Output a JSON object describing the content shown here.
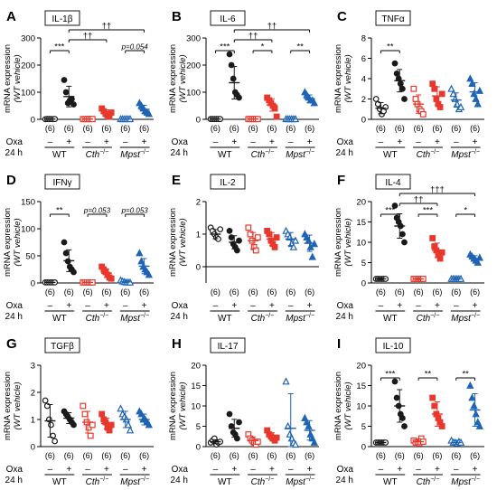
{
  "figure": {
    "ylabel_line1": "mRNA expression",
    "ylabel_line2": "(WT vehicle)",
    "treatment_label": "Oxa",
    "time_label": "24 h",
    "minus": "–",
    "plus": "+",
    "groups": [
      "WT",
      "Cth",
      "Mpst"
    ],
    "group_superscript": "−/−",
    "n_label": "(6)"
  },
  "colors": {
    "wt": "#1a1a1a",
    "cth": "#e8382d",
    "mpst": "#1f64b4"
  },
  "chart_data": [
    {
      "panel": "A",
      "title": "IL-1β",
      "type": "scatter",
      "ylim": [
        0,
        300
      ],
      "yticks": [
        0,
        100,
        200,
        300
      ],
      "groups": [
        {
          "name": "WT vehicle",
          "values": [
            0.5,
            1,
            1,
            1.2,
            0.8,
            1
          ],
          "mean": 1,
          "sd": 0.2
        },
        {
          "name": "WT Oxa",
          "values": [
            145,
            100,
            60,
            70,
            75,
            55
          ],
          "mean": 84,
          "sd": 38
        },
        {
          "name": "Cth vehicle",
          "values": [
            1,
            1,
            0.8,
            1.2,
            1,
            1
          ],
          "mean": 1,
          "sd": 0.2
        },
        {
          "name": "Cth Oxa",
          "values": [
            40,
            30,
            20,
            15,
            10,
            25
          ],
          "mean": 23,
          "sd": 12
        },
        {
          "name": "Mpst vehicle",
          "values": [
            1,
            1,
            0.8,
            1.2,
            1,
            1
          ],
          "mean": 1,
          "sd": 0.2
        },
        {
          "name": "Mpst Oxa",
          "values": [
            60,
            50,
            40,
            30,
            25,
            20
          ],
          "mean": 37,
          "sd": 15
        }
      ],
      "annotations": [
        {
          "text": "***",
          "from": 0,
          "to": 1,
          "level": 0
        },
        {
          "text": "p=0.054",
          "from": 4,
          "to": 5,
          "level": 0
        },
        {
          "text": "††",
          "from": 1,
          "to": 3,
          "level": 1
        },
        {
          "text": "††",
          "from": 1,
          "to": 5,
          "level": 2
        }
      ]
    },
    {
      "panel": "B",
      "title": "IL-6",
      "type": "scatter",
      "ylim": [
        0,
        300
      ],
      "yticks": [
        0,
        100,
        200,
        300
      ],
      "groups": [
        {
          "name": "WT vehicle",
          "values": [
            1,
            1,
            1,
            1,
            1,
            1
          ],
          "mean": 1,
          "sd": 0.1
        },
        {
          "name": "WT Oxa",
          "values": [
            240,
            200,
            150,
            100,
            90,
            80
          ],
          "mean": 135,
          "sd": 60
        },
        {
          "name": "Cth vehicle",
          "values": [
            1,
            1,
            1,
            1,
            1,
            1
          ],
          "mean": 1,
          "sd": 0.1
        },
        {
          "name": "Cth Oxa",
          "values": [
            80,
            70,
            60,
            50,
            40,
            10
          ],
          "mean": 53,
          "sd": 23
        },
        {
          "name": "Mpst vehicle",
          "values": [
            1,
            1,
            1,
            1,
            1,
            1
          ],
          "mean": 1,
          "sd": 0.1
        },
        {
          "name": "Mpst Oxa",
          "values": [
            100,
            90,
            80,
            70,
            70,
            60
          ],
          "mean": 76,
          "sd": 14
        }
      ],
      "annotations": [
        {
          "text": "***",
          "from": 0,
          "to": 1,
          "level": 0
        },
        {
          "text": "*",
          "from": 2,
          "to": 3,
          "level": 0
        },
        {
          "text": "**",
          "from": 4,
          "to": 5,
          "level": 0
        },
        {
          "text": "††",
          "from": 1,
          "to": 3,
          "level": 1
        },
        {
          "text": "††",
          "from": 1,
          "to": 5,
          "level": 2
        }
      ]
    },
    {
      "panel": "C",
      "title": "TNFα",
      "type": "scatter",
      "ylim": [
        0,
        8
      ],
      "yticks": [
        0,
        2,
        4,
        6,
        8
      ],
      "groups": [
        {
          "name": "WT vehicle",
          "values": [
            2,
            1.5,
            1,
            0.5,
            0.8,
            1.2
          ],
          "mean": 1.1,
          "sd": 0.55
        },
        {
          "name": "WT Oxa",
          "values": [
            5.5,
            4.5,
            4,
            3.5,
            3,
            2
          ],
          "mean": 3.8,
          "sd": 1.1
        },
        {
          "name": "Cth vehicle",
          "values": [
            3,
            2,
            1.5,
            1,
            0.8,
            0.5
          ],
          "mean": 1.5,
          "sd": 0.9
        },
        {
          "name": "Cth Oxa",
          "values": [
            3.5,
            3,
            2,
            1.5,
            1.2,
            2.5
          ],
          "mean": 2.3,
          "sd": 0.9
        },
        {
          "name": "Mpst vehicle",
          "values": [
            3,
            2.5,
            2,
            1.5,
            1,
            1.2
          ],
          "mean": 1.9,
          "sd": 0.7
        },
        {
          "name": "Mpst Oxa",
          "values": [
            4,
            3.5,
            2.5,
            2,
            1.5,
            2.8
          ],
          "mean": 2.7,
          "sd": 0.9
        }
      ],
      "annotations": [
        {
          "text": "**",
          "from": 0,
          "to": 1,
          "level": 0
        }
      ]
    },
    {
      "panel": "D",
      "title": "IFNγ",
      "type": "scatter",
      "ylim": [
        0,
        150
      ],
      "yticks": [
        0,
        50,
        100,
        150
      ],
      "groups": [
        {
          "name": "WT vehicle",
          "values": [
            1,
            1,
            1,
            1,
            1,
            1
          ],
          "mean": 1,
          "sd": 0.1
        },
        {
          "name": "WT Oxa",
          "values": [
            75,
            55,
            40,
            30,
            25,
            20
          ],
          "mean": 41,
          "sd": 20
        },
        {
          "name": "Cth vehicle",
          "values": [
            1,
            1,
            1,
            1,
            1,
            1
          ],
          "mean": 1,
          "sd": 0.1
        },
        {
          "name": "Cth Oxa",
          "values": [
            30,
            25,
            20,
            15,
            10,
            8
          ],
          "mean": 18,
          "sd": 8
        },
        {
          "name": "Mpst vehicle",
          "values": [
            5,
            3,
            2,
            1,
            1,
            1
          ],
          "mean": 2,
          "sd": 1.5
        },
        {
          "name": "Mpst Oxa",
          "values": [
            55,
            40,
            30,
            25,
            20,
            15
          ],
          "mean": 31,
          "sd": 14
        }
      ],
      "annotations": [
        {
          "text": "**",
          "from": 0,
          "to": 1,
          "level": 0
        },
        {
          "text": "p=0.053",
          "from": 2,
          "to": 3,
          "level": 0
        },
        {
          "text": "p=0.053",
          "from": 4,
          "to": 5,
          "level": 0
        }
      ]
    },
    {
      "panel": "E",
      "title": "IL-2",
      "type": "scatter",
      "ylim": [
        -0.5,
        2
      ],
      "yticks": [
        0,
        1,
        2
      ],
      "groups": [
        {
          "name": "WT vehicle",
          "values": [
            1.2,
            1.1,
            1,
            0.9,
            0.85,
            1.15
          ],
          "mean": 1.0,
          "sd": 0.14
        },
        {
          "name": "WT Oxa",
          "values": [
            1.1,
            0.9,
            0.7,
            0.6,
            0.5,
            0.8
          ],
          "mean": 0.75,
          "sd": 0.2
        },
        {
          "name": "Cth vehicle",
          "values": [
            1.2,
            1,
            0.8,
            0.6,
            0.5,
            0.9
          ],
          "mean": 0.8,
          "sd": 0.25
        },
        {
          "name": "Cth Oxa",
          "values": [
            1.1,
            1,
            0.8,
            0.7,
            0.6,
            0.9
          ],
          "mean": 0.85,
          "sd": 0.2
        },
        {
          "name": "Mpst vehicle",
          "values": [
            1.1,
            1,
            0.9,
            0.7,
            0.6,
            0.8
          ],
          "mean": 0.85,
          "sd": 0.2
        },
        {
          "name": "Mpst Oxa",
          "values": [
            1,
            0.9,
            0.8,
            0.6,
            0.3,
            0.7
          ],
          "mean": 0.72,
          "sd": 0.25
        }
      ],
      "annotations": []
    },
    {
      "panel": "F",
      "title": "IL-4",
      "type": "scatter",
      "ylim": [
        0,
        20
      ],
      "yticks": [
        0,
        5,
        10,
        15,
        20
      ],
      "groups": [
        {
          "name": "WT vehicle",
          "values": [
            1,
            1,
            1,
            1,
            1,
            1
          ],
          "mean": 1,
          "sd": 0.2
        },
        {
          "name": "WT Oxa",
          "values": [
            19,
            16,
            15,
            14,
            12,
            10
          ],
          "mean": 14,
          "sd": 3
        },
        {
          "name": "Cth vehicle",
          "values": [
            1,
            1,
            1,
            1,
            1,
            1
          ],
          "mean": 1,
          "sd": 0.2
        },
        {
          "name": "Cth Oxa",
          "values": [
            11,
            9,
            8,
            7,
            6,
            7.5
          ],
          "mean": 8,
          "sd": 1.8
        },
        {
          "name": "Mpst vehicle",
          "values": [
            1,
            1,
            1,
            1,
            1,
            1
          ],
          "mean": 1,
          "sd": 0.2
        },
        {
          "name": "Mpst Oxa",
          "values": [
            7,
            6.5,
            6,
            5.5,
            5,
            6.2
          ],
          "mean": 6,
          "sd": 0.7
        }
      ],
      "annotations": [
        {
          "text": "***",
          "from": 0,
          "to": 1,
          "level": 0
        },
        {
          "text": "***",
          "from": 2,
          "to": 3,
          "level": 0
        },
        {
          "text": "*",
          "from": 4,
          "to": 5,
          "level": 0
        },
        {
          "text": "††",
          "from": 1,
          "to": 3,
          "level": 1
        },
        {
          "text": "†††",
          "from": 1,
          "to": 5,
          "level": 2
        }
      ]
    },
    {
      "panel": "G",
      "title": "TGFβ",
      "type": "scatter",
      "ylim": [
        0,
        3
      ],
      "yticks": [
        0,
        1,
        2,
        3
      ],
      "groups": [
        {
          "name": "WT vehicle",
          "values": [
            1.7,
            1.5,
            1,
            0.8,
            0.4,
            0.2
          ],
          "mean": 0.95,
          "sd": 0.6
        },
        {
          "name": "WT Oxa",
          "values": [
            1.3,
            1.2,
            1.1,
            1,
            0.9,
            0.8
          ],
          "mean": 1.05,
          "sd": 0.2
        },
        {
          "name": "Cth vehicle",
          "values": [
            1.5,
            1.2,
            0.9,
            0.7,
            0.4,
            0.8
          ],
          "mean": 0.9,
          "sd": 0.4
        },
        {
          "name": "Cth Oxa",
          "values": [
            1.2,
            1,
            0.9,
            0.7,
            0.6,
            0.8
          ],
          "mean": 0.85,
          "sd": 0.2
        },
        {
          "name": "Mpst vehicle",
          "values": [
            1.4,
            1.2,
            1.1,
            1,
            0.8,
            0.6
          ],
          "mean": 1.0,
          "sd": 0.3
        },
        {
          "name": "Mpst Oxa",
          "values": [
            1.3,
            1.2,
            1,
            1,
            0.9,
            0.8
          ],
          "mean": 1.0,
          "sd": 0.2
        }
      ],
      "annotations": []
    },
    {
      "panel": "H",
      "title": "IL-17",
      "type": "scatter",
      "ylim": [
        0,
        20
      ],
      "yticks": [
        0,
        5,
        10,
        15,
        20
      ],
      "groups": [
        {
          "name": "WT vehicle",
          "values": [
            1,
            1.5,
            2,
            0.5,
            1,
            1.2
          ],
          "mean": 1.2,
          "sd": 0.5
        },
        {
          "name": "WT Oxa",
          "values": [
            8,
            5,
            3.5,
            3,
            2,
            6
          ],
          "mean": 4.5,
          "sd": 2.2
        },
        {
          "name": "Cth vehicle",
          "values": [
            3,
            2,
            1.5,
            1,
            0.5,
            1.2
          ],
          "mean": 1.5,
          "sd": 0.9
        },
        {
          "name": "Cth Oxa",
          "values": [
            4,
            3,
            2.5,
            2,
            1.5,
            2.2
          ],
          "mean": 2.5,
          "sd": 0.9
        },
        {
          "name": "Mpst vehicle",
          "values": [
            16,
            5,
            3,
            2,
            1,
            0.5
          ],
          "mean": 4.5,
          "sd": 8.5
        },
        {
          "name": "Mpst Oxa",
          "values": [
            7,
            6,
            5,
            3,
            2,
            1
          ],
          "mean": 4,
          "sd": 2.4
        }
      ],
      "annotations": []
    },
    {
      "panel": "I",
      "title": "IL-10",
      "type": "scatter",
      "ylim": [
        0,
        20
      ],
      "yticks": [
        0,
        5,
        10,
        15,
        20
      ],
      "groups": [
        {
          "name": "WT vehicle",
          "values": [
            1,
            1,
            1,
            1,
            1,
            1
          ],
          "mean": 1,
          "sd": 0.3
        },
        {
          "name": "WT Oxa",
          "values": [
            16,
            12,
            10,
            8,
            7,
            5
          ],
          "mean": 10,
          "sd": 4
        },
        {
          "name": "Cth vehicle",
          "values": [
            1.5,
            1,
            1,
            0.8,
            2,
            1.2
          ],
          "mean": 1.2,
          "sd": 0.7
        },
        {
          "name": "Cth Oxa",
          "values": [
            12,
            10,
            8,
            7,
            6,
            5
          ],
          "mean": 8,
          "sd": 3
        },
        {
          "name": "Mpst vehicle",
          "values": [
            1.5,
            1,
            1,
            0.8,
            1.2,
            1
          ],
          "mean": 1,
          "sd": 0.5
        },
        {
          "name": "Mpst Oxa",
          "values": [
            15,
            12,
            10,
            8,
            6,
            5
          ],
          "mean": 9,
          "sd": 4
        }
      ],
      "annotations": [
        {
          "text": "***",
          "from": 0,
          "to": 1,
          "level": 0
        },
        {
          "text": "**",
          "from": 2,
          "to": 3,
          "level": 0
        },
        {
          "text": "**",
          "from": 4,
          "to": 5,
          "level": 0
        }
      ]
    }
  ]
}
